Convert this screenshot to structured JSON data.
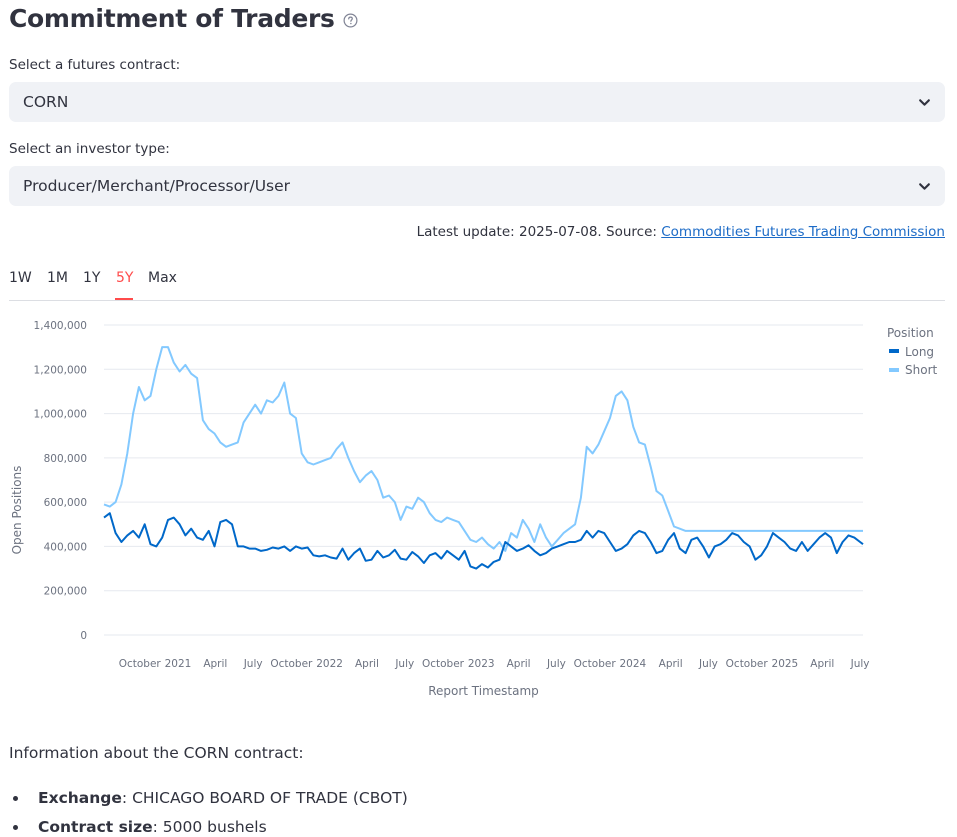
{
  "page": {
    "title": "Commitment of Traders",
    "help_icon": "question-circle-icon"
  },
  "contract_select": {
    "label": "Select a futures contract:",
    "value": "CORN"
  },
  "investor_select": {
    "label": "Select an investor type:",
    "value": "Producer/Merchant/Processor/User"
  },
  "update": {
    "prefix": "Latest update: 2025-07-08. Source: ",
    "source_link": "Commodities Futures Trading Commission"
  },
  "tabs": {
    "items": [
      "1W",
      "1M",
      "1Y",
      "5Y",
      "Max"
    ],
    "active": "5Y"
  },
  "colors": {
    "accent": "#ff4b4b",
    "long": "#0068c9",
    "short": "#83c9ff"
  },
  "chart_data": {
    "type": "line",
    "title": "",
    "xlabel": "Report Timestamp",
    "ylabel": "Open Positions",
    "ylim": [
      0,
      1400000
    ],
    "yticks": [
      0,
      200000,
      400000,
      600000,
      800000,
      1000000,
      1200000,
      1400000
    ],
    "ytick_labels": [
      "0",
      "200,000",
      "400,000",
      "600,000",
      "800,000",
      "1,000,000",
      "1,200,000",
      "1,400,000"
    ],
    "xlim": [
      "2020-07-07",
      "2025-07-08"
    ],
    "xticks": [
      "2020-10-01",
      "2021-01-01",
      "2021-04-01",
      "2021-07-01",
      "2021-10-01",
      "2022-01-01",
      "2022-04-01",
      "2022-07-01",
      "2022-10-01",
      "2023-01-01",
      "2023-04-01",
      "2023-07-01",
      "2023-10-01",
      "2024-01-01",
      "2024-04-01",
      "2024-07-01",
      "2024-10-01",
      "2025-01-01",
      "2025-04-01",
      "2025-07-01"
    ],
    "xtick_labels": [
      "October",
      "2021",
      "April",
      "July",
      "October",
      "2022",
      "April",
      "July",
      "October",
      "2023",
      "April",
      "July",
      "October",
      "2024",
      "April",
      "July",
      "October",
      "2025",
      "April",
      "July"
    ],
    "grid": true,
    "legend": {
      "title": "Position",
      "placement": "top-right"
    },
    "series": [
      {
        "name": "Long",
        "x": [
          "2020-07-07",
          "2020-07-21",
          "2020-08-04",
          "2020-08-18",
          "2020-09-01",
          "2020-09-15",
          "2020-09-29",
          "2020-10-13",
          "2020-10-27",
          "2020-11-10",
          "2020-11-24",
          "2020-12-08",
          "2020-12-22",
          "2021-01-05",
          "2021-01-19",
          "2021-02-02",
          "2021-02-16",
          "2021-03-02",
          "2021-03-16",
          "2021-03-30",
          "2021-04-13",
          "2021-04-27",
          "2021-05-11",
          "2021-05-25",
          "2021-06-08",
          "2021-06-22",
          "2021-07-06",
          "2021-07-20",
          "2021-08-03",
          "2021-08-17",
          "2021-08-31",
          "2021-09-14",
          "2021-09-28",
          "2021-10-12",
          "2021-10-26",
          "2021-11-09",
          "2021-11-23",
          "2021-12-07",
          "2021-12-21",
          "2022-01-04",
          "2022-01-18",
          "2022-02-01",
          "2022-02-15",
          "2022-03-01",
          "2022-03-15",
          "2022-03-29",
          "2022-04-12",
          "2022-04-26",
          "2022-05-10",
          "2022-05-24",
          "2022-06-07",
          "2022-06-21",
          "2022-07-05",
          "2022-07-19",
          "2022-08-02",
          "2022-08-16",
          "2022-08-30",
          "2022-09-13",
          "2022-09-27",
          "2022-10-11",
          "2022-10-25",
          "2022-11-08",
          "2022-11-22",
          "2022-12-06",
          "2022-12-20",
          "2023-01-03",
          "2023-01-17",
          "2023-01-31",
          "2023-02-14",
          "2023-02-28",
          "2023-03-14",
          "2023-03-28",
          "2023-04-11",
          "2023-04-25",
          "2023-05-09",
          "2023-05-23",
          "2023-06-06",
          "2023-06-20",
          "2023-07-04",
          "2023-07-18",
          "2023-08-01",
          "2023-08-15",
          "2023-08-29",
          "2023-09-12",
          "2023-09-26",
          "2023-10-10",
          "2023-10-24",
          "2023-11-07",
          "2023-11-21",
          "2023-12-05",
          "2023-12-19",
          "2024-01-02",
          "2024-01-16",
          "2024-01-30",
          "2024-02-13",
          "2024-02-27",
          "2024-03-12",
          "2024-03-26",
          "2024-04-09",
          "2024-04-23",
          "2024-05-07",
          "2024-05-21",
          "2024-06-04",
          "2024-06-18",
          "2024-07-02",
          "2024-07-16",
          "2024-07-30",
          "2024-08-13",
          "2024-08-27",
          "2024-09-10",
          "2024-09-24",
          "2024-10-08",
          "2024-10-22",
          "2024-11-05",
          "2024-11-19",
          "2024-12-03",
          "2024-12-17",
          "2024-12-31",
          "2025-01-14",
          "2025-01-28",
          "2025-02-11",
          "2025-02-25",
          "2025-03-11",
          "2025-03-25",
          "2025-04-08",
          "2025-04-22",
          "2025-05-06",
          "2025-05-20",
          "2025-06-03",
          "2025-06-17",
          "2025-07-01",
          "2025-07-08"
        ],
        "values": [
          530000,
          550000,
          460000,
          420000,
          450000,
          470000,
          440000,
          500000,
          410000,
          400000,
          440000,
          520000,
          530000,
          500000,
          450000,
          480000,
          440000,
          430000,
          470000,
          400000,
          510000,
          520000,
          500000,
          400000,
          400000,
          390000,
          390000,
          380000,
          385000,
          395000,
          390000,
          400000,
          380000,
          400000,
          390000,
          395000,
          360000,
          355000,
          360000,
          350000,
          345000,
          390000,
          340000,
          370000,
          390000,
          335000,
          340000,
          380000,
          350000,
          360000,
          385000,
          345000,
          340000,
          375000,
          355000,
          325000,
          360000,
          370000,
          345000,
          380000,
          360000,
          340000,
          380000,
          310000,
          300000,
          320000,
          305000,
          330000,
          340000,
          420000,
          400000,
          380000,
          390000,
          405000,
          380000,
          360000,
          370000,
          390000,
          400000,
          410000,
          420000,
          420000,
          430000,
          470000,
          440000,
          470000,
          460000,
          420000,
          380000,
          390000,
          410000,
          450000,
          470000,
          460000,
          420000,
          370000,
          380000,
          430000,
          460000,
          390000,
          370000,
          430000,
          440000,
          400000,
          350000,
          400000,
          410000,
          430000,
          460000,
          450000,
          420000,
          400000,
          340000,
          360000,
          400000,
          460000,
          440000,
          420000,
          390000,
          380000,
          420000,
          380000,
          410000,
          440000,
          460000,
          440000,
          370000,
          420000,
          450000,
          440000,
          420000,
          410000
        ]
      },
      {
        "name": "Short",
        "x": [
          "2020-07-07",
          "2020-07-21",
          "2020-08-04",
          "2020-08-18",
          "2020-09-01",
          "2020-09-15",
          "2020-09-29",
          "2020-10-13",
          "2020-10-27",
          "2020-11-10",
          "2020-11-24",
          "2020-12-08",
          "2020-12-22",
          "2021-01-05",
          "2021-01-19",
          "2021-02-02",
          "2021-02-16",
          "2021-03-02",
          "2021-03-16",
          "2021-03-30",
          "2021-04-13",
          "2021-04-27",
          "2021-05-11",
          "2021-05-25",
          "2021-06-08",
          "2021-06-22",
          "2021-07-06",
          "2021-07-20",
          "2021-08-03",
          "2021-08-17",
          "2021-08-31",
          "2021-09-14",
          "2021-09-28",
          "2021-10-12",
          "2021-10-26",
          "2021-11-09",
          "2021-11-23",
          "2021-12-07",
          "2021-12-21",
          "2022-01-04",
          "2022-01-18",
          "2022-02-01",
          "2022-02-15",
          "2022-03-01",
          "2022-03-15",
          "2022-03-29",
          "2022-04-12",
          "2022-04-26",
          "2022-05-10",
          "2022-05-24",
          "2022-06-07",
          "2022-06-21",
          "2022-07-05",
          "2022-07-19",
          "2022-08-02",
          "2022-08-16",
          "2022-08-30",
          "2022-09-13",
          "2022-09-27",
          "2022-10-11",
          "2022-10-25",
          "2022-11-08",
          "2022-11-22",
          "2022-12-06",
          "2022-12-20",
          "2023-01-03",
          "2023-01-17",
          "2023-01-31",
          "2023-02-14",
          "2023-02-28",
          "2023-03-14",
          "2023-03-28",
          "2023-04-11",
          "2023-04-25",
          "2023-05-09",
          "2023-05-23",
          "2023-06-06",
          "2023-06-20",
          "2023-07-04",
          "2023-07-18",
          "2023-08-01",
          "2023-08-15",
          "2023-08-29",
          "2023-09-12",
          "2023-09-26",
          "2023-10-10",
          "2023-10-24",
          "2023-11-07",
          "2023-11-21",
          "2023-12-05",
          "2023-12-19",
          "2024-01-02",
          "2024-01-16",
          "2024-01-30",
          "2024-02-13",
          "2024-02-27",
          "2024-03-12",
          "2024-03-26",
          "2024-04-09",
          "2024-04-23",
          "2024-05-07",
          "2024-05-21",
          "2024-06-04",
          "2024-06-18",
          "2024-07-02",
          "2024-07-16",
          "2024-07-30",
          "2024-08-13",
          "2024-08-27",
          "2024-09-10",
          "2024-09-24",
          "2024-10-08",
          "2024-10-22",
          "2024-11-05",
          "2024-11-19",
          "2024-12-03",
          "2024-12-17",
          "2024-12-31",
          "2025-01-14",
          "2025-01-28",
          "2025-02-11",
          "2025-02-25",
          "2025-03-11",
          "2025-03-25",
          "2025-04-08",
          "2025-04-22",
          "2025-05-06",
          "2025-05-20",
          "2025-06-03",
          "2025-06-17",
          "2025-07-01",
          "2025-07-08"
        ],
        "values": [
          590000,
          580000,
          600000,
          680000,
          820000,
          1000000,
          1120000,
          1060000,
          1080000,
          1200000,
          1300000,
          1300000,
          1230000,
          1190000,
          1220000,
          1180000,
          1160000,
          970000,
          930000,
          910000,
          870000,
          850000,
          860000,
          870000,
          960000,
          1000000,
          1040000,
          1000000,
          1060000,
          1050000,
          1080000,
          1140000,
          1000000,
          980000,
          820000,
          780000,
          770000,
          780000,
          790000,
          800000,
          840000,
          870000,
          800000,
          740000,
          690000,
          720000,
          740000,
          700000,
          620000,
          630000,
          600000,
          520000,
          580000,
          570000,
          620000,
          600000,
          550000,
          520000,
          510000,
          530000,
          520000,
          510000,
          470000,
          430000,
          420000,
          440000,
          410000,
          390000,
          420000,
          380000,
          460000,
          440000,
          520000,
          480000,
          420000,
          500000,
          440000,
          400000,
          430000,
          460000,
          480000,
          500000,
          620000,
          850000,
          820000,
          860000,
          920000,
          980000,
          1080000,
          1100000,
          1060000,
          940000,
          870000,
          860000,
          760000,
          650000,
          630000,
          560000,
          490000,
          480000,
          470000,
          470000,
          470000,
          470000,
          470000,
          470000,
          470000,
          470000,
          470000,
          470000,
          470000,
          470000,
          470000,
          470000,
          470000,
          470000,
          470000,
          470000,
          470000,
          470000,
          470000,
          470000,
          470000,
          470000,
          470000,
          470000,
          470000,
          470000,
          470000,
          470000,
          470000,
          470000
        ]
      }
    ]
  },
  "info": {
    "heading": "Information about the CORN contract:",
    "exchange_label": "Exchange",
    "exchange_value": ": CHICAGO BOARD OF TRADE (CBOT)",
    "size_label": "Contract size",
    "size_value": ": 5000 bushels"
  }
}
